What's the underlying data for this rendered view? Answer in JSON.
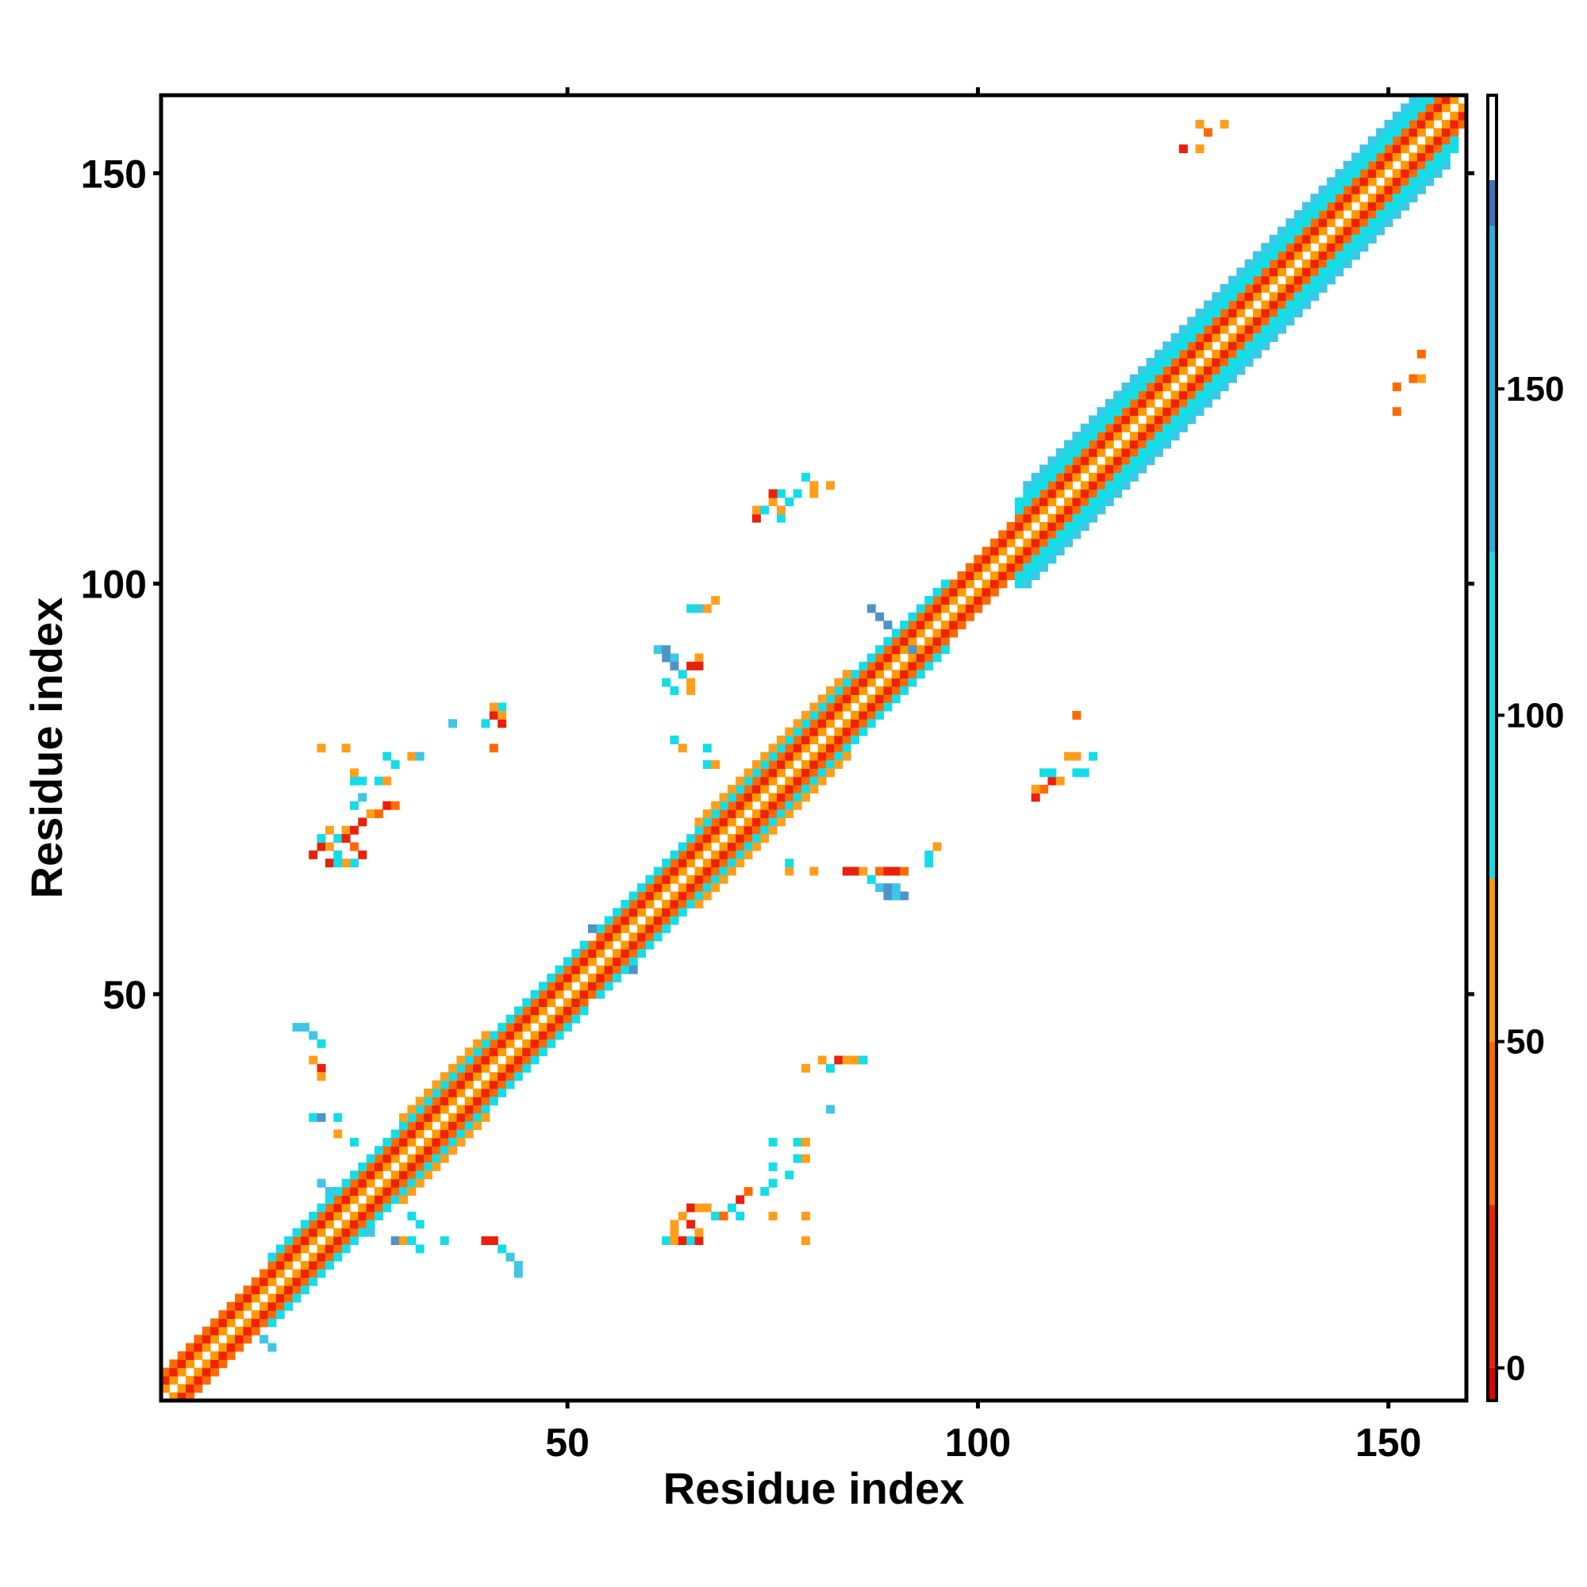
{
  "chart_data": {
    "type": "heatmap",
    "title": "",
    "xlabel": "Residue index",
    "ylabel": "Residue index",
    "xlim": [
      0.5,
      159.5
    ],
    "ylim": [
      0.5,
      159.5
    ],
    "x_ticks": [
      50,
      100,
      150
    ],
    "y_ticks": [
      50,
      100,
      150
    ],
    "grid": false,
    "legend": "colorbar right",
    "colorbar": {
      "ticks": [
        0,
        50,
        100,
        150
      ],
      "range": [
        -5,
        195
      ],
      "bands": [
        {
          "from": -5,
          "to": 0,
          "color": "#e00000"
        },
        {
          "from": 0,
          "to": 25,
          "color": "#ee2200"
        },
        {
          "from": 25,
          "to": 50,
          "color": "#ff6a00"
        },
        {
          "from": 50,
          "to": 75,
          "color": "#ff9a00"
        },
        {
          "from": 75,
          "to": 125,
          "color": "#1ad8e6"
        },
        {
          "from": 125,
          "to": 175,
          "color": "#2aaedc"
        },
        {
          "from": 175,
          "to": 182,
          "color": "#3a74c0"
        },
        {
          "from": 182,
          "to": 195,
          "color": "#ffffff"
        }
      ]
    },
    "colors": {
      "red": "#e8200c",
      "darkorange": "#ff6a00",
      "orange": "#ff9e1b",
      "cyan": "#14dde8",
      "skyblue": "#3ec6e6",
      "steelblue": "#4f93c9"
    },
    "diagonal": {
      "from": 1,
      "to": 159,
      "values": [
        [
          -3,
          40
        ],
        [
          -2,
          20
        ],
        [
          -1,
          55
        ],
        [
          1,
          55
        ],
        [
          2,
          20
        ],
        [
          3,
          40
        ]
      ]
    },
    "diagonal_bands": [
      {
        "from": 14,
        "to": 52,
        "offset": 4,
        "color": "cyan"
      },
      {
        "from": 14,
        "to": 52,
        "offset": -4,
        "color": "cyan"
      },
      {
        "from": 30,
        "to": 40,
        "offset": 5,
        "color": "orange"
      },
      {
        "from": 30,
        "to": 40,
        "offset": -5,
        "color": "orange"
      },
      {
        "from": 54,
        "to": 96,
        "offset": 4,
        "color": "cyan"
      },
      {
        "from": 54,
        "to": 96,
        "offset": -4,
        "color": "cyan"
      },
      {
        "from": 66,
        "to": 84,
        "offset": 5,
        "color": "orange"
      },
      {
        "from": 66,
        "to": 84,
        "offset": -5,
        "color": "orange"
      },
      {
        "from": 105,
        "to": 158,
        "offset": 4,
        "color": "cyan"
      },
      {
        "from": 105,
        "to": 158,
        "offset": -4,
        "color": "cyan"
      },
      {
        "from": 105,
        "to": 158,
        "offset": 5,
        "color": "cyan"
      },
      {
        "from": 105,
        "to": 158,
        "offset": -5,
        "color": "cyan"
      },
      {
        "from": 106,
        "to": 157,
        "offset": 6,
        "color": "skyblue"
      },
      {
        "from": 106,
        "to": 157,
        "offset": -6,
        "color": "skyblue"
      }
    ],
    "clusters": [
      {
        "x": [
          9,
          14
        ],
        "y": [
          6,
          11
        ],
        "color": "skyblue"
      },
      {
        "x": [
          20,
          26
        ],
        "y": [
          21,
          27
        ],
        "color": "skyblue"
      },
      {
        "x": [
          53,
          58
        ],
        "y": [
          52,
          57
        ],
        "color": "steelblue"
      },
      {
        "x": [
          66,
          70
        ],
        "y": [
          65,
          69
        ],
        "color": "skyblue"
      },
      {
        "x": [
          87,
          94
        ],
        "y": [
          90,
          96
        ],
        "color": "steelblue"
      }
    ],
    "points": [
      [
        17,
        46,
        "skyblue"
      ],
      [
        18,
        46,
        "skyblue"
      ],
      [
        19,
        45,
        "skyblue"
      ],
      [
        20,
        44,
        "cyan"
      ],
      [
        20,
        41,
        "red"
      ],
      [
        20,
        40,
        "orange"
      ],
      [
        19,
        42,
        "orange"
      ],
      [
        19,
        35,
        "cyan"
      ],
      [
        20,
        35,
        "steelblue"
      ],
      [
        22,
        35,
        "cyan"
      ],
      [
        22,
        33,
        "orange"
      ],
      [
        24,
        32,
        "cyan"
      ],
      [
        29,
        20,
        "steelblue"
      ],
      [
        30,
        20,
        "orange"
      ],
      [
        31,
        20,
        "cyan"
      ],
      [
        32,
        19,
        "cyan"
      ],
      [
        35,
        20,
        "cyan"
      ],
      [
        40,
        20,
        "red"
      ],
      [
        41,
        20,
        "red"
      ],
      [
        42,
        19,
        "cyan"
      ],
      [
        43,
        18,
        "skyblue"
      ],
      [
        44,
        17,
        "skyblue"
      ],
      [
        44,
        16,
        "skyblue"
      ],
      [
        31,
        23,
        "cyan"
      ],
      [
        32,
        22,
        "cyan"
      ],
      [
        62,
        20,
        "cyan"
      ],
      [
        63,
        20,
        "orange"
      ],
      [
        64,
        20,
        "red"
      ],
      [
        65,
        20,
        "cyan"
      ],
      [
        66,
        20,
        "red"
      ],
      [
        66,
        21,
        "orange"
      ],
      [
        65,
        22,
        "red"
      ],
      [
        64,
        23,
        "orange"
      ],
      [
        63,
        22,
        "orange"
      ],
      [
        63,
        21,
        "orange"
      ],
      [
        65,
        24,
        "red"
      ],
      [
        66,
        24,
        "orange"
      ],
      [
        67,
        24,
        "orange"
      ],
      [
        68,
        23,
        "cyan"
      ],
      [
        69,
        23,
        "darkorange"
      ],
      [
        70,
        24,
        "cyan"
      ],
      [
        71,
        25,
        "red"
      ],
      [
        72,
        26,
        "darkorange"
      ],
      [
        71,
        23,
        "cyan"
      ],
      [
        74,
        26,
        "cyan"
      ],
      [
        75,
        27,
        "cyan"
      ],
      [
        77,
        28,
        "cyan"
      ],
      [
        75,
        29,
        "cyan"
      ],
      [
        78,
        30,
        "cyan"
      ],
      [
        79,
        30,
        "orange"
      ],
      [
        78,
        32,
        "cyan"
      ],
      [
        79,
        32,
        "orange"
      ],
      [
        75,
        32,
        "cyan"
      ],
      [
        75,
        23,
        "orange"
      ],
      [
        79,
        23,
        "orange"
      ],
      [
        79,
        20,
        "orange"
      ],
      [
        82,
        36,
        "skyblue"
      ],
      [
        81,
        42,
        "orange"
      ],
      [
        83,
        42,
        "red"
      ],
      [
        84,
        42,
        "orange"
      ],
      [
        85,
        42,
        "orange"
      ],
      [
        86,
        42,
        "cyan"
      ],
      [
        82,
        41,
        "cyan"
      ],
      [
        79,
        41,
        "orange"
      ],
      [
        20,
        68,
        "red"
      ],
      [
        21,
        68,
        "orange"
      ],
      [
        22,
        67,
        "cyan"
      ],
      [
        21,
        66,
        "red"
      ],
      [
        22,
        69,
        "cyan"
      ],
      [
        23,
        70,
        "orange"
      ],
      [
        24,
        70,
        "red"
      ],
      [
        25,
        71,
        "red"
      ],
      [
        26,
        72,
        "orange"
      ],
      [
        27,
        72,
        "darkorange"
      ],
      [
        28,
        73,
        "red"
      ],
      [
        29,
        73,
        "darkorange"
      ],
      [
        24,
        73,
        "cyan"
      ],
      [
        25,
        74,
        "skyblue"
      ],
      [
        23,
        69,
        "red"
      ],
      [
        24,
        68,
        "darkorange"
      ],
      [
        25,
        67,
        "red"
      ],
      [
        24,
        66,
        "cyan"
      ],
      [
        23,
        66,
        "orange"
      ],
      [
        22,
        66,
        "cyan"
      ],
      [
        19,
        67,
        "red"
      ],
      [
        20,
        69,
        "cyan"
      ],
      [
        21,
        70,
        "orange"
      ],
      [
        24,
        76,
        "cyan"
      ],
      [
        25,
        76,
        "cyan"
      ],
      [
        27,
        76,
        "cyan"
      ],
      [
        28,
        76,
        "orange"
      ],
      [
        29,
        78,
        "cyan"
      ],
      [
        31,
        79,
        "orange"
      ],
      [
        32,
        79,
        "skyblue"
      ],
      [
        24,
        77,
        "orange"
      ],
      [
        20,
        80,
        "orange"
      ],
      [
        23,
        80,
        "orange"
      ],
      [
        28,
        79,
        "cyan"
      ],
      [
        36,
        83,
        "skyblue"
      ],
      [
        40,
        83,
        "cyan"
      ],
      [
        41,
        84,
        "red"
      ],
      [
        42,
        83,
        "red"
      ],
      [
        42,
        85,
        "cyan"
      ],
      [
        41,
        85,
        "orange"
      ],
      [
        42,
        84,
        "orange"
      ],
      [
        41,
        80,
        "darkorange"
      ],
      [
        61,
        92,
        "skyblue"
      ],
      [
        62,
        91,
        "steelblue"
      ],
      [
        62,
        92,
        "steelblue"
      ],
      [
        63,
        91,
        "skyblue"
      ],
      [
        63,
        90,
        "steelblue"
      ],
      [
        64,
        89,
        "cyan"
      ],
      [
        65,
        90,
        "red"
      ],
      [
        66,
        91,
        "orange"
      ],
      [
        66,
        90,
        "red"
      ],
      [
        65,
        88,
        "orange"
      ],
      [
        63,
        87,
        "cyan"
      ],
      [
        65,
        87,
        "orange"
      ],
      [
        62,
        88,
        "cyan"
      ],
      [
        63,
        81,
        "cyan"
      ],
      [
        64,
        80,
        "orange"
      ],
      [
        67,
        80,
        "cyan"
      ],
      [
        67,
        78,
        "cyan"
      ],
      [
        68,
        78,
        "orange"
      ],
      [
        65,
        97,
        "cyan"
      ],
      [
        67,
        97,
        "orange"
      ],
      [
        68,
        98,
        "orange"
      ],
      [
        66,
        97,
        "skyblue"
      ],
      [
        73,
        108,
        "red"
      ],
      [
        73,
        109,
        "orange"
      ],
      [
        74,
        109,
        "cyan"
      ],
      [
        75,
        110,
        "orange"
      ],
      [
        76,
        108,
        "cyan"
      ],
      [
        77,
        110,
        "cyan"
      ],
      [
        76,
        111,
        "cyan"
      ],
      [
        78,
        111,
        "cyan"
      ],
      [
        79,
        113,
        "cyan"
      ],
      [
        80,
        111,
        "orange"
      ],
      [
        80,
        112,
        "orange"
      ],
      [
        82,
        112,
        "orange"
      ],
      [
        75,
        111,
        "red"
      ],
      [
        76,
        109,
        "orange"
      ],
      [
        77,
        65,
        "orange"
      ],
      [
        77,
        66,
        "cyan"
      ],
      [
        80,
        65,
        "orange"
      ],
      [
        84,
        65,
        "red"
      ],
      [
        85,
        65,
        "red"
      ],
      [
        86,
        65,
        "orange"
      ],
      [
        87,
        64,
        "cyan"
      ],
      [
        88,
        63,
        "skyblue"
      ],
      [
        89,
        63,
        "steelblue"
      ],
      [
        90,
        63,
        "skyblue"
      ],
      [
        91,
        62,
        "steelblue"
      ],
      [
        88,
        65,
        "darkorange"
      ],
      [
        89,
        65,
        "red"
      ],
      [
        90,
        65,
        "red"
      ],
      [
        91,
        65,
        "darkorange"
      ],
      [
        94,
        67,
        "cyan"
      ],
      [
        95,
        68,
        "orange"
      ],
      [
        94,
        66,
        "cyan"
      ],
      [
        89,
        62,
        "steelblue"
      ],
      [
        90,
        62,
        "skyblue"
      ],
      [
        107,
        74,
        "red"
      ],
      [
        108,
        75,
        "darkorange"
      ],
      [
        109,
        76,
        "red"
      ],
      [
        110,
        76,
        "orange"
      ],
      [
        112,
        77,
        "cyan"
      ],
      [
        113,
        77,
        "cyan"
      ],
      [
        108,
        77,
        "cyan"
      ],
      [
        109,
        77,
        "cyan"
      ],
      [
        111,
        79,
        "orange"
      ],
      [
        112,
        79,
        "orange"
      ],
      [
        114,
        79,
        "cyan"
      ],
      [
        112,
        84,
        "darkorange"
      ],
      [
        107,
        75,
        "orange"
      ],
      [
        125,
        153,
        "red"
      ],
      [
        127,
        153,
        "orange"
      ],
      [
        127,
        156,
        "orange"
      ],
      [
        130,
        156,
        "orange"
      ],
      [
        128,
        155,
        "darkorange"
      ],
      [
        151,
        121,
        "darkorange"
      ],
      [
        151,
        124,
        "darkorange"
      ],
      [
        153,
        125,
        "darkorange"
      ],
      [
        154,
        125,
        "orange"
      ],
      [
        154,
        128,
        "darkorange"
      ]
    ]
  }
}
